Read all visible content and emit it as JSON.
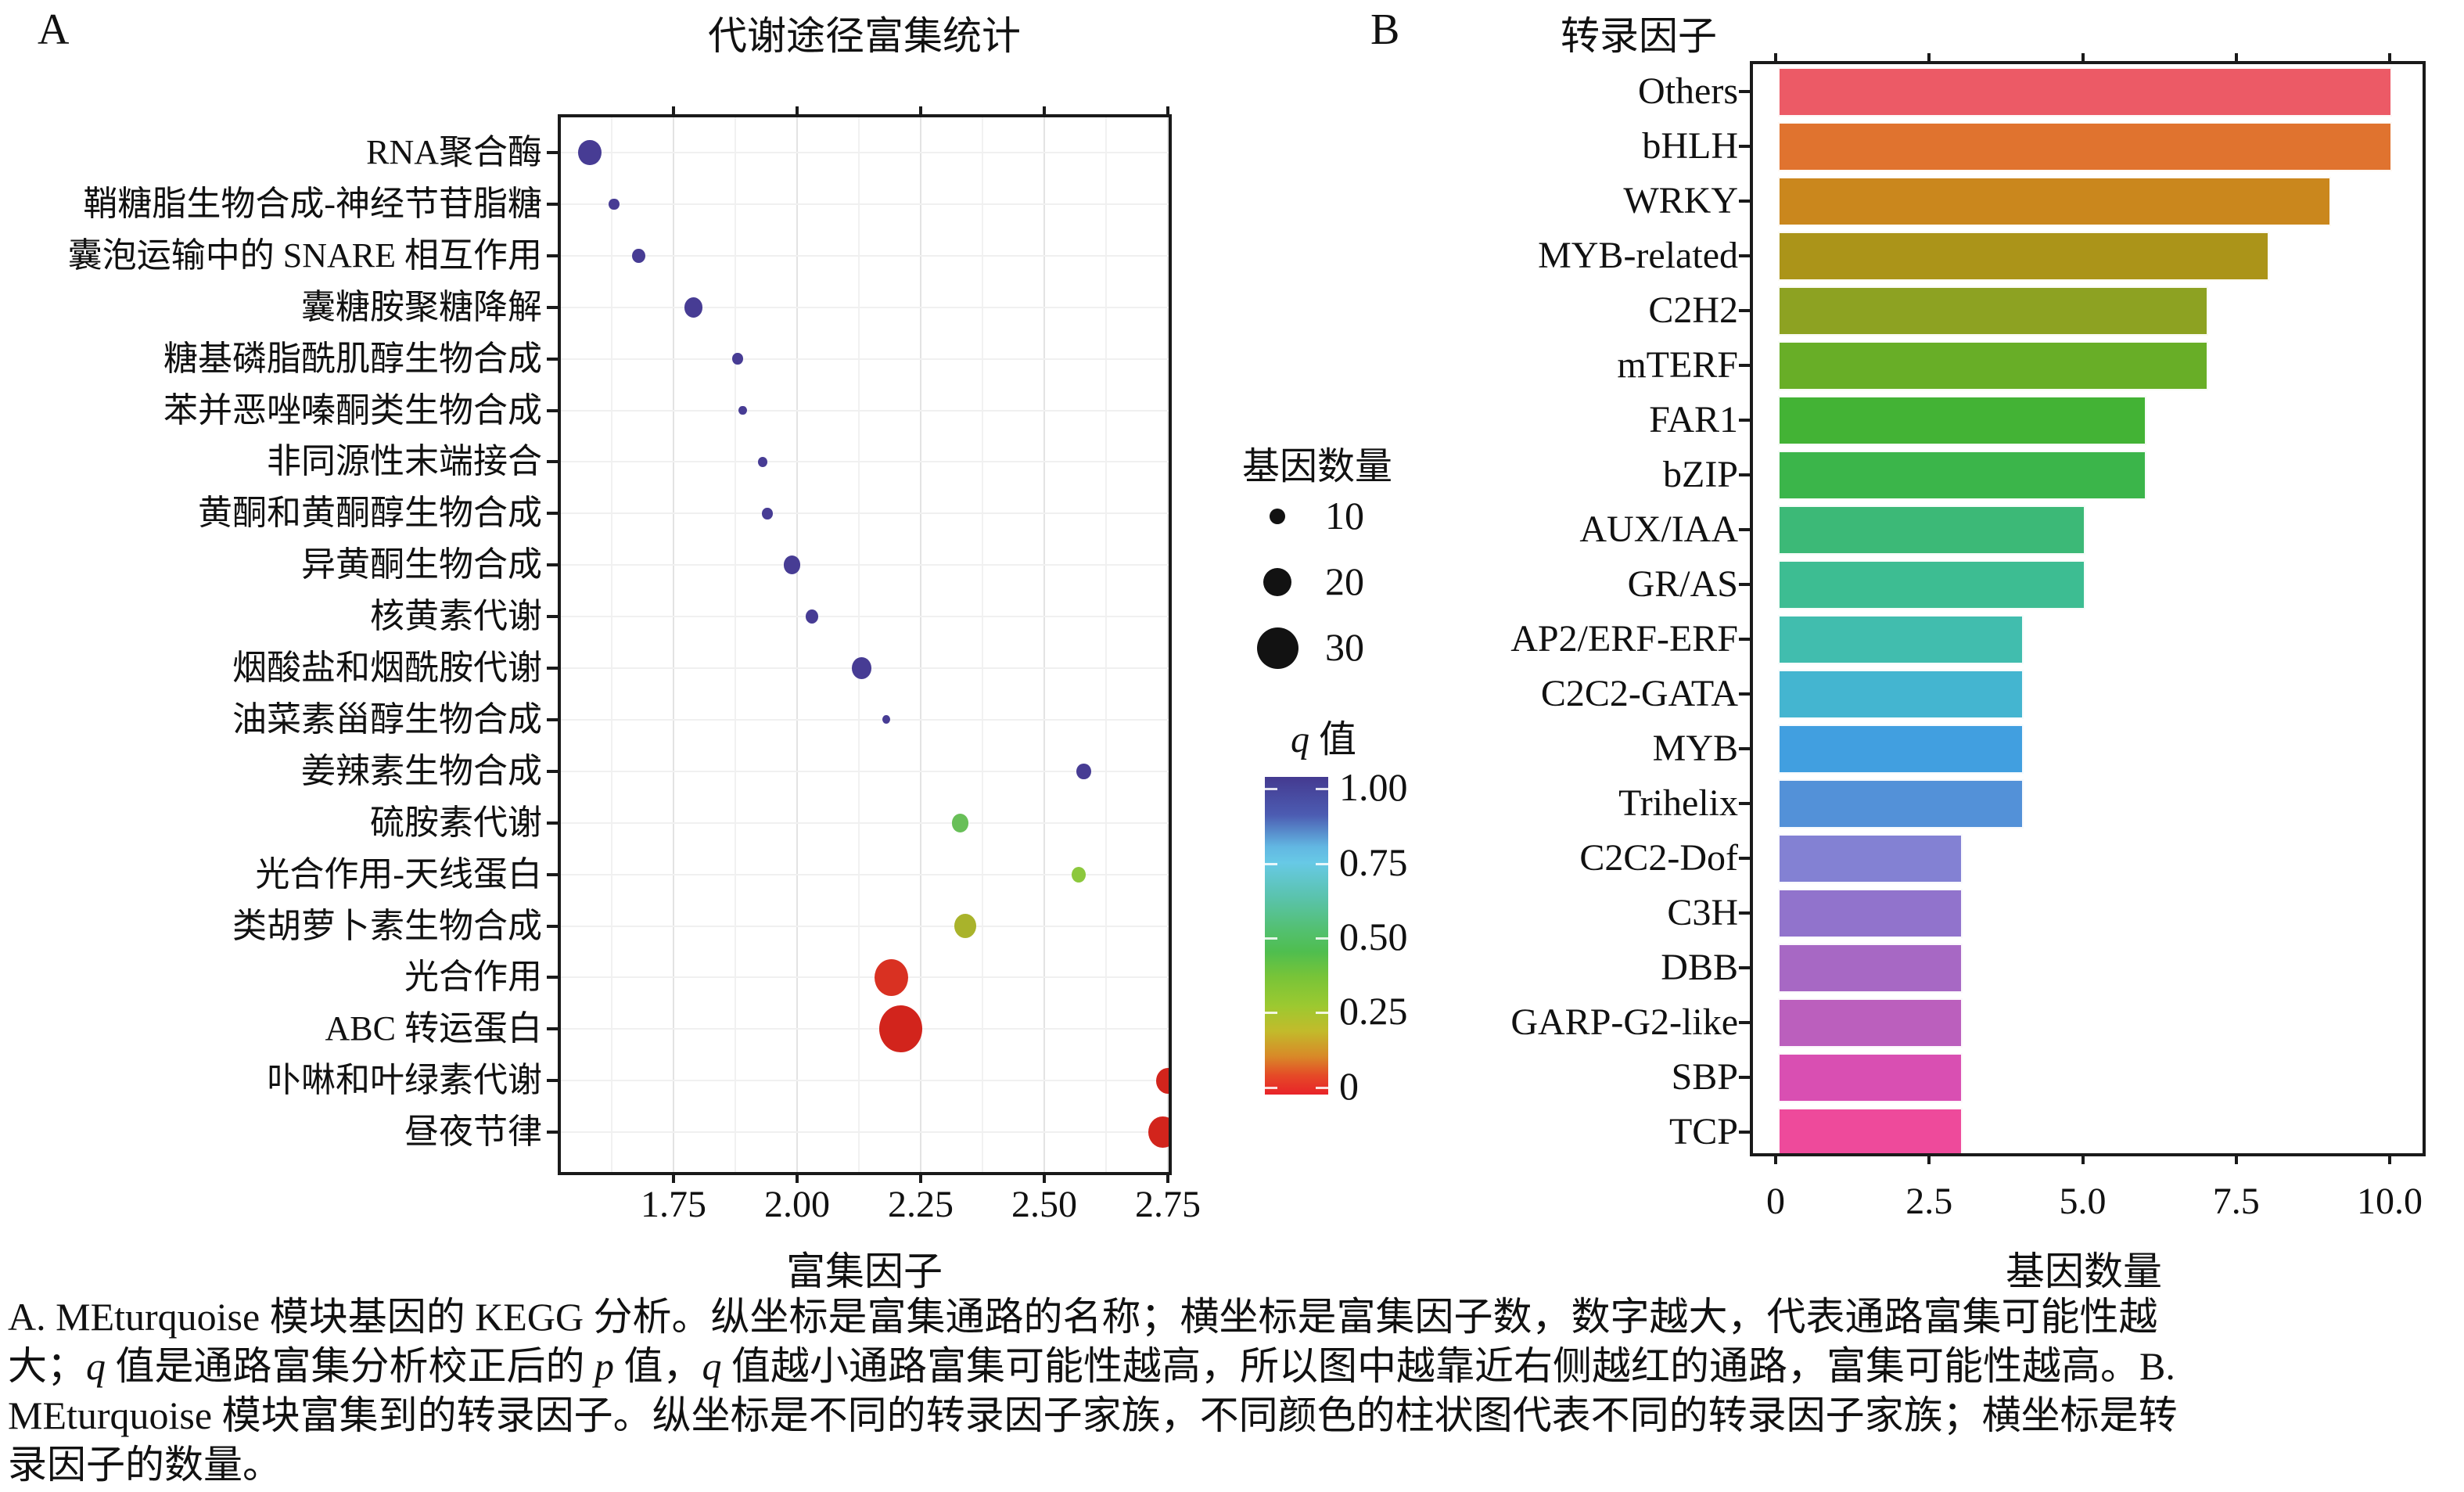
{
  "panel_a_label": "A",
  "panel_b_label": "B",
  "chart_data": [
    {
      "type": "scatter",
      "title": "代谢途径富集统计",
      "xlabel": "富集因子",
      "ylabel": "",
      "xlim": [
        1.515,
        2.76
      ],
      "xticks": [
        1.75,
        2.0,
        2.25,
        2.5,
        2.75
      ],
      "xtick_labels": [
        "1.75",
        "2.00",
        "2.25",
        "2.50",
        "2.75"
      ],
      "grid": "major and minor vertical, per-row horizontal",
      "size_encoding": "基因数量 (gene count)",
      "color_encoding": "q 值 (q value, 1=indigo, 0=red)",
      "points": [
        {
          "label": "RNA聚合酶",
          "x": 1.58,
          "genes": 16,
          "q": 1.0,
          "color": "#473c94"
        },
        {
          "label": "鞘糖脂生物合成-神经节苷脂糖",
          "x": 1.63,
          "genes": 6,
          "q": 1.0,
          "color": "#473c94"
        },
        {
          "label": "囊泡运输中的 SNARE 相互作用",
          "x": 1.68,
          "genes": 8,
          "q": 1.0,
          "color": "#473c94"
        },
        {
          "label": "囊糖胺聚糖降解",
          "x": 1.79,
          "genes": 12,
          "q": 1.0,
          "color": "#473c94"
        },
        {
          "label": "糖基磷脂酰肌醇生物合成",
          "x": 1.88,
          "genes": 6,
          "q": 1.0,
          "color": "#473c94"
        },
        {
          "label": "苯并恶唑嗪酮类生物合成",
          "x": 1.89,
          "genes": 4,
          "q": 1.0,
          "color": "#473c94"
        },
        {
          "label": "非同源性末端接合",
          "x": 1.93,
          "genes": 5,
          "q": 1.0,
          "color": "#473c94"
        },
        {
          "label": "黄酮和黄酮醇生物合成",
          "x": 1.94,
          "genes": 6,
          "q": 1.0,
          "color": "#473c94"
        },
        {
          "label": "异黄酮生物合成",
          "x": 1.99,
          "genes": 11,
          "q": 1.0,
          "color": "#473c94"
        },
        {
          "label": "核黄素代谢",
          "x": 2.03,
          "genes": 8,
          "q": 1.0,
          "color": "#473c94"
        },
        {
          "label": "烟酸盐和烟酰胺代谢",
          "x": 2.13,
          "genes": 13,
          "q": 1.0,
          "color": "#473c94"
        },
        {
          "label": "油菜素甾醇生物合成",
          "x": 2.18,
          "genes": 4,
          "q": 1.0,
          "color": "#473c94"
        },
        {
          "label": "姜辣素生物合成",
          "x": 2.58,
          "genes": 9,
          "q": 1.0,
          "color": "#473c94"
        },
        {
          "label": "硫胺素代谢",
          "x": 2.33,
          "genes": 11,
          "q": 0.45,
          "color": "#68bf58"
        },
        {
          "label": "光合作用-天线蛋白",
          "x": 2.57,
          "genes": 9,
          "q": 0.32,
          "color": "#8cc83d"
        },
        {
          "label": "类胡萝卜素生物合成",
          "x": 2.34,
          "genes": 15,
          "q": 0.25,
          "color": "#a9b32b"
        },
        {
          "label": "光合作用",
          "x": 2.19,
          "genes": 24,
          "q": 0.03,
          "color": "#d93122"
        },
        {
          "label": "ABC 转运蛋白",
          "x": 2.21,
          "genes": 31,
          "q": 0.02,
          "color": "#d2241c"
        },
        {
          "label": "卟啉和叶绿素代谢",
          "x": 2.75,
          "genes": 16,
          "q": 0.02,
          "color": "#d2241c"
        },
        {
          "label": "昼夜节律",
          "x": 2.74,
          "genes": 20,
          "q": 0.02,
          "color": "#d2241c"
        }
      ]
    },
    {
      "type": "bar",
      "orientation": "horizontal",
      "title": "转录因子",
      "xlabel": "基因数量",
      "xlim": [
        0,
        10.5
      ],
      "xticks": [
        0,
        2.5,
        5.0,
        7.5,
        10.0
      ],
      "xtick_labels": [
        "0",
        "2.5",
        "5.0",
        "7.5",
        "10.0"
      ],
      "grid": "none",
      "bars": [
        {
          "label": "Others",
          "value": 10,
          "color": "#ec5a66"
        },
        {
          "label": "bHLH",
          "value": 10,
          "color": "#e0732f"
        },
        {
          "label": "WRKY",
          "value": 9,
          "color": "#ca871d"
        },
        {
          "label": "MYB-related",
          "value": 8,
          "color": "#ab9419"
        },
        {
          "label": "C2H2",
          "value": 7,
          "color": "#8da222"
        },
        {
          "label": "mTERF",
          "value": 7,
          "color": "#68ae27"
        },
        {
          "label": "FAR1",
          "value": 6,
          "color": "#43b335"
        },
        {
          "label": "bZIP",
          "value": 6,
          "color": "#3bb54a"
        },
        {
          "label": "AUX/IAA",
          "value": 5,
          "color": "#3cb977"
        },
        {
          "label": "GR/AS",
          "value": 5,
          "color": "#3dbd92"
        },
        {
          "label": "AP2/ERF-ERF",
          "value": 4,
          "color": "#41bdae"
        },
        {
          "label": "C2C2-GATA",
          "value": 4,
          "color": "#44b5d0"
        },
        {
          "label": "MYB",
          "value": 4,
          "color": "#419fe0"
        },
        {
          "label": "Trihelix",
          "value": 4,
          "color": "#5391d8"
        },
        {
          "label": "C2C2-Dof",
          "value": 3,
          "color": "#8381d3"
        },
        {
          "label": "C3H",
          "value": 3,
          "color": "#9173cc"
        },
        {
          "label": "DBB",
          "value": 3,
          "color": "#a768c4"
        },
        {
          "label": "GARP-G2-like",
          "value": 3,
          "color": "#bb5fbd"
        },
        {
          "label": "SBP",
          "value": 3,
          "color": "#d94fb2"
        },
        {
          "label": "TCP",
          "value": 3,
          "color": "#ee4a9b"
        }
      ]
    }
  ],
  "legends": {
    "size": {
      "title": "基因数量",
      "items": [
        {
          "label": "10",
          "genes": 10
        },
        {
          "label": "20",
          "genes": 20
        },
        {
          "label": "30",
          "genes": 30
        }
      ]
    },
    "q": {
      "title_q": "q",
      "title_rest": " 值",
      "tick_labels": [
        "1.00",
        "0.75",
        "0.50",
        "0.25",
        "0"
      ],
      "top_color": "#443a90",
      "bottom_color": "#e82329"
    }
  },
  "caption": {
    "lines": [
      [
        {
          "t": "A. MEturquoise 模块基因的 KEGG 分析。纵坐标是富集通路的名称；横坐标是富集因子数，数字越大，代表通路富集可能性越"
        }
      ],
      [
        {
          "t": "大；"
        },
        {
          "t": "q",
          "i": 1
        },
        {
          "t": " 值是通路富集分析校正后的 "
        },
        {
          "t": "p",
          "i": 1
        },
        {
          "t": " 值，"
        },
        {
          "t": "q",
          "i": 1
        },
        {
          "t": " 值越小通路富集可能性越高，所以图中越靠近右侧越红的通路，富集可能性越高。B."
        }
      ],
      [
        {
          "t": "MEturquoise 模块富集到的转录因子。纵坐标是不同的转录因子家族，不同颜色的柱状图代表不同的转录因子家族；横坐标是转"
        }
      ],
      [
        {
          "t": "录因子的数量。"
        }
      ]
    ]
  }
}
